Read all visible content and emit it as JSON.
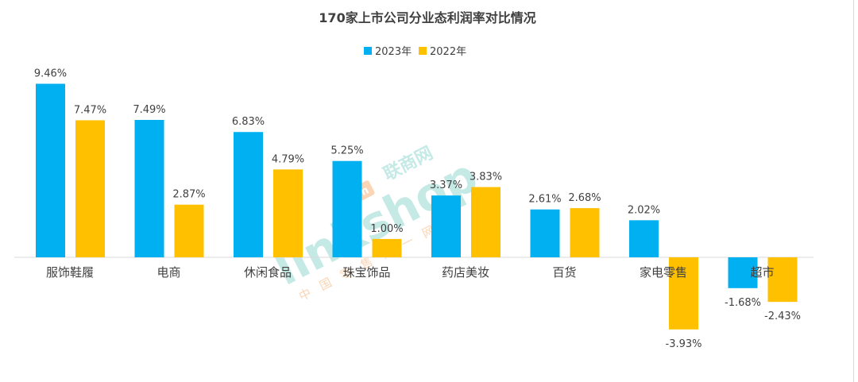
{
  "chart_data": {
    "type": "bar",
    "title": "170家上市公司分业态利润率对比情况",
    "categories": [
      "服饰鞋履",
      "电商",
      "休闲食品",
      "珠宝饰品",
      "药店美妆",
      "百货",
      "家电零售",
      "超市"
    ],
    "series": [
      {
        "name": "2023年",
        "values": [
          9.46,
          7.49,
          6.83,
          5.25,
          3.37,
          2.61,
          2.02,
          -1.68
        ],
        "labels": [
          "9.46%",
          "7.49%",
          "6.83%",
          "5.25%",
          "3.37%",
          "2.61%",
          "2.02%",
          "-1.68%"
        ],
        "color": "#00b0f0"
      },
      {
        "name": "2022年",
        "values": [
          7.47,
          2.87,
          4.79,
          1.0,
          3.83,
          2.68,
          -3.93,
          -2.43
        ],
        "labels": [
          "7.47%",
          "2.87%",
          "4.79%",
          "1.00%",
          "3.83%",
          "2.68%",
          "-3.93%",
          "-2.43%"
        ],
        "color": "#ffc000"
      }
    ],
    "legend_position": "top",
    "grid": false,
    "ylim": [
      -6,
      10
    ]
  },
  "watermark": {
    "brand": "linkshop",
    "cn": "联商网",
    "domain": "com",
    "sub": "中国零售第一网"
  },
  "colors": {
    "title": "#404040",
    "label": "#404040",
    "axis": "#d9d9d9",
    "watermark_orange": "#f4a460",
    "watermark_teal": "#7fd1c8"
  }
}
